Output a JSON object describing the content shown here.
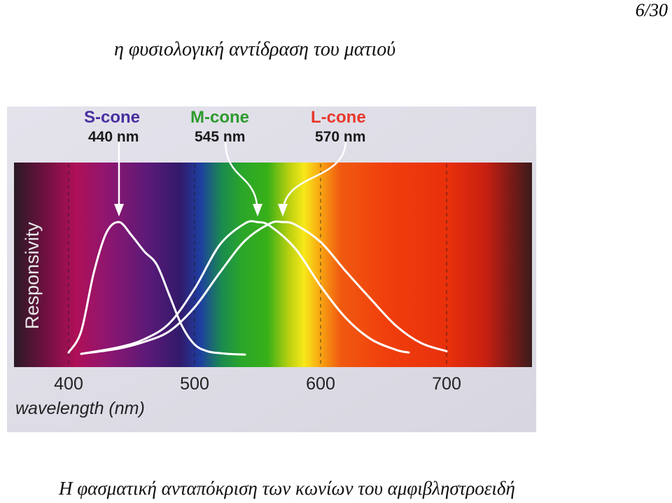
{
  "slide": {
    "page_number": "6/30",
    "title": "η φυσιολογική αντίδραση του ματιού",
    "caption": "Η φασματική ανταπόκριση των κωνίων του αμφιβληστροειδή"
  },
  "chart_data": {
    "type": "line",
    "title": "",
    "xlabel": "wavelength (nm)",
    "ylabel": "Responsivity",
    "xlim": [
      380,
      780
    ],
    "ylim": [
      0,
      1
    ],
    "x_ticks": [
      "400",
      "500",
      "600",
      "700"
    ],
    "x_tick_values": [
      400,
      500,
      600,
      700
    ],
    "grid": "vertical dashed at 400, 500, 600, 700",
    "background": "visible spectrum gradient",
    "series": [
      {
        "name": "S-cone",
        "peak_label": "440 nm",
        "label_color": "#4a2fa0",
        "line_color": "#ffffff",
        "x": [
          400,
          410,
          420,
          430,
          440,
          450,
          460,
          470,
          480,
          490,
          500,
          510,
          520,
          530,
          540
        ],
        "values": [
          0.02,
          0.18,
          0.62,
          0.92,
          1.0,
          0.9,
          0.78,
          0.68,
          0.45,
          0.22,
          0.08,
          0.03,
          0.015,
          0.008,
          0.005
        ]
      },
      {
        "name": "M-cone",
        "peak_label": "545 nm",
        "label_color": "#2e9a2e",
        "line_color": "#ffffff",
        "x": [
          410,
          440,
          460,
          480,
          500,
          520,
          540,
          550,
          560,
          580,
          600,
          620,
          640,
          660,
          670
        ],
        "values": [
          0.01,
          0.06,
          0.12,
          0.24,
          0.5,
          0.83,
          0.99,
          1.0,
          0.97,
          0.8,
          0.52,
          0.28,
          0.12,
          0.04,
          0.02
        ]
      },
      {
        "name": "L-cone",
        "peak_label": "570 nm",
        "label_color": "#e8382a",
        "line_color": "#ffffff",
        "x": [
          410,
          440,
          460,
          480,
          500,
          520,
          540,
          560,
          570,
          580,
          600,
          620,
          640,
          660,
          680,
          700
        ],
        "values": [
          0.01,
          0.05,
          0.1,
          0.18,
          0.36,
          0.62,
          0.86,
          0.99,
          1.0,
          0.98,
          0.85,
          0.63,
          0.42,
          0.22,
          0.09,
          0.03
        ]
      }
    ]
  }
}
